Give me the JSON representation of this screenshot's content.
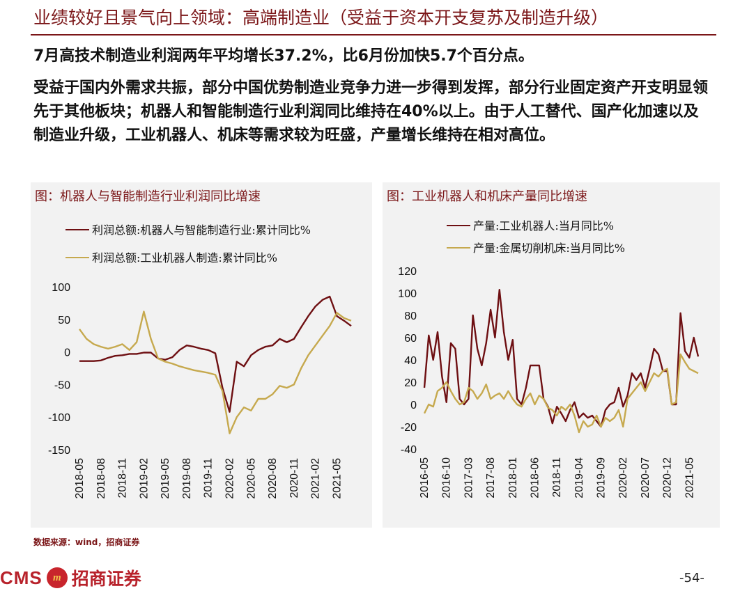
{
  "header": {
    "title": "业绩较好且景气向上领域：高端制造业（受益于资本开支复苏及制造升级）",
    "lead": "7月高技术制造业利润两年平均增长37.2%，比6月份加快5.7个百分点。",
    "paragraph": "受益于国内外需求共振，部分中国优势制造业竞争力进一步得到发挥，部分行业固定资产开支明显领先于其他板块；机器人和智能制造行业利润同比维持在40%以上。由于人工替代、国产化加速以及制造业升级，工业机器人、机床等需求较为旺盛，产量增长维持在相对高位。"
  },
  "colors": {
    "accent": "#7b1618",
    "series1": "#6e0f12",
    "series2": "#c6a94e"
  },
  "chart_data": [
    {
      "type": "line",
      "title": "图：机器人与智能制造行业利润同比增速",
      "xlabel": "",
      "ylabel": "",
      "ylim": [
        -150,
        100
      ],
      "yticks": [
        100,
        50,
        0,
        -50,
        -100,
        -150
      ],
      "x_start": "2018-05",
      "x_end": "2021-07",
      "x_ticks": [
        "2018-05",
        "2018-08",
        "2018-11",
        "2019-02",
        "2019-05",
        "2019-08",
        "2019-11",
        "2020-02",
        "2020-05",
        "2020-08",
        "2020-11",
        "2021-02",
        "2021-05"
      ],
      "grid": false,
      "legend": "top-left",
      "series": [
        {
          "name": "利润总额:机器人与智能制造行业:累计同比%",
          "color": "#6e0f12",
          "points": [
            [
              "2018-05",
              -14
            ],
            [
              "2018-07",
              -14
            ],
            [
              "2018-08",
              -13
            ],
            [
              "2018-09",
              -9
            ],
            [
              "2018-10",
              -6
            ],
            [
              "2018-11",
              -5
            ],
            [
              "2018-12",
              -3
            ],
            [
              "2019-01",
              -3
            ],
            [
              "2019-02",
              -1
            ],
            [
              "2019-03",
              -1
            ],
            [
              "2019-04",
              -10
            ],
            [
              "2019-05",
              -12
            ],
            [
              "2019-06",
              -8
            ],
            [
              "2019-07",
              3
            ],
            [
              "2019-08",
              10
            ],
            [
              "2019-09",
              8
            ],
            [
              "2019-10",
              5
            ],
            [
              "2019-11",
              3
            ],
            [
              "2019-12",
              -2
            ],
            [
              "2020-01",
              -55
            ],
            [
              "2020-02",
              -92
            ],
            [
              "2020-03",
              -15
            ],
            [
              "2020-04",
              -22
            ],
            [
              "2020-05",
              -5
            ],
            [
              "2020-06",
              3
            ],
            [
              "2020-07",
              8
            ],
            [
              "2020-08",
              10
            ],
            [
              "2020-09",
              20
            ],
            [
              "2020-10",
              15
            ],
            [
              "2020-11",
              20
            ],
            [
              "2020-12",
              38
            ],
            [
              "2021-01",
              55
            ],
            [
              "2021-02",
              70
            ],
            [
              "2021-03",
              80
            ],
            [
              "2021-04",
              85
            ],
            [
              "2021-05",
              55
            ],
            [
              "2021-06",
              48
            ],
            [
              "2021-07",
              40
            ]
          ]
        },
        {
          "name": "利润总额:工业机器人制造:累计同比%",
          "color": "#c6a94e",
          "points": [
            [
              "2018-05",
              35
            ],
            [
              "2018-06",
              20
            ],
            [
              "2018-07",
              12
            ],
            [
              "2018-08",
              8
            ],
            [
              "2018-09",
              5
            ],
            [
              "2018-10",
              8
            ],
            [
              "2018-11",
              12
            ],
            [
              "2018-12",
              3
            ],
            [
              "2019-01",
              15
            ],
            [
              "2019-02",
              62
            ],
            [
              "2019-03",
              20
            ],
            [
              "2019-04",
              -10
            ],
            [
              "2019-05",
              -15
            ],
            [
              "2019-06",
              -18
            ],
            [
              "2019-07",
              -22
            ],
            [
              "2019-08",
              -25
            ],
            [
              "2019-09",
              -28
            ],
            [
              "2019-10",
              -30
            ],
            [
              "2019-11",
              -32
            ],
            [
              "2019-12",
              -35
            ],
            [
              "2020-01",
              -60
            ],
            [
              "2020-02",
              -125
            ],
            [
              "2020-03",
              -100
            ],
            [
              "2020-04",
              -85
            ],
            [
              "2020-05",
              -90
            ],
            [
              "2020-06",
              -72
            ],
            [
              "2020-07",
              -72
            ],
            [
              "2020-08",
              -65
            ],
            [
              "2020-09",
              -52
            ],
            [
              "2020-10",
              -55
            ],
            [
              "2020-11",
              -50
            ],
            [
              "2020-12",
              -25
            ],
            [
              "2021-01",
              -5
            ],
            [
              "2021-02",
              10
            ],
            [
              "2021-03",
              25
            ],
            [
              "2021-04",
              40
            ],
            [
              "2021-05",
              60
            ],
            [
              "2021-06",
              52
            ],
            [
              "2021-07",
              48
            ]
          ]
        }
      ]
    },
    {
      "type": "line",
      "title": "图：工业机器人和机床产量同比增速",
      "xlabel": "",
      "ylabel": "",
      "ylim": [
        -40,
        120
      ],
      "yticks": [
        120,
        100,
        80,
        60,
        40,
        20,
        0,
        -20,
        -40
      ],
      "x_start": "2016-05",
      "x_end": "2021-07",
      "x_ticks": [
        "2016-05",
        "2016-10",
        "2017-03",
        "2017-08",
        "2018-01",
        "2018-06",
        "2018-11",
        "2019-04",
        "2019-09",
        "2020-02",
        "2020-07",
        "2020-12",
        "2021-05"
      ],
      "grid": false,
      "legend": "top-center",
      "series": [
        {
          "name": "产量:工业机器人:当月同比%",
          "color": "#6e0f12",
          "points": [
            [
              "2016-05",
              15
            ],
            [
              "2016-06",
              62
            ],
            [
              "2016-07",
              40
            ],
            [
              "2016-08",
              65
            ],
            [
              "2016-09",
              25
            ],
            [
              "2016-10",
              2
            ],
            [
              "2016-11",
              55
            ],
            [
              "2016-12",
              50
            ],
            [
              "2017-01",
              5
            ],
            [
              "2017-02",
              0
            ],
            [
              "2017-03",
              5
            ],
            [
              "2017-04",
              80
            ],
            [
              "2017-05",
              50
            ],
            [
              "2017-06",
              35
            ],
            [
              "2017-07",
              55
            ],
            [
              "2017-08",
              85
            ],
            [
              "2017-09",
              60
            ],
            [
              "2017-10",
              103
            ],
            [
              "2017-11",
              65
            ],
            [
              "2017-12",
              40
            ],
            [
              "2018-01",
              58
            ],
            [
              "2018-02",
              5
            ],
            [
              "2018-03",
              0
            ],
            [
              "2018-04",
              15
            ],
            [
              "2018-05",
              35
            ],
            [
              "2018-06",
              35
            ],
            [
              "2018-07",
              35
            ],
            [
              "2018-08",
              5
            ],
            [
              "2018-09",
              -2
            ],
            [
              "2018-10",
              -17
            ],
            [
              "2018-11",
              -2
            ],
            [
              "2018-12",
              -8
            ],
            [
              "2019-01",
              -15
            ],
            [
              "2019-02",
              -5
            ],
            [
              "2019-03",
              2
            ],
            [
              "2019-04",
              -12
            ],
            [
              "2019-05",
              -8
            ],
            [
              "2019-06",
              -12
            ],
            [
              "2019-07",
              -10
            ],
            [
              "2019-08",
              -15
            ],
            [
              "2019-09",
              -20
            ],
            [
              "2019-10",
              -5
            ],
            [
              "2019-11",
              0
            ],
            [
              "2019-12",
              2
            ],
            [
              "2020-01",
              15
            ],
            [
              "2020-02",
              -2
            ],
            [
              "2020-03",
              8
            ],
            [
              "2020-04",
              28
            ],
            [
              "2020-05",
              22
            ],
            [
              "2020-06",
              28
            ],
            [
              "2020-07",
              15
            ],
            [
              "2020-08",
              32
            ],
            [
              "2020-09",
              50
            ],
            [
              "2020-10",
              45
            ],
            [
              "2020-11",
              30
            ],
            [
              "2020-12",
              30
            ],
            [
              "2021-01",
              0
            ],
            [
              "2021-02",
              0
            ],
            [
              "2021-03",
              82
            ],
            [
              "2021-04",
              48
            ],
            [
              "2021-05",
              42
            ],
            [
              "2021-06",
              60
            ],
            [
              "2021-07",
              43
            ]
          ]
        },
        {
          "name": "产量:金属切削机床:当月同比%",
          "color": "#c6a94e",
          "points": [
            [
              "2016-05",
              -8
            ],
            [
              "2016-06",
              0
            ],
            [
              "2016-07",
              -2
            ],
            [
              "2016-08",
              12
            ],
            [
              "2016-09",
              15
            ],
            [
              "2016-10",
              20
            ],
            [
              "2016-11",
              12
            ],
            [
              "2016-12",
              5
            ],
            [
              "2017-01",
              0
            ],
            [
              "2017-02",
              2
            ],
            [
              "2017-03",
              15
            ],
            [
              "2017-04",
              12
            ],
            [
              "2017-05",
              5
            ],
            [
              "2017-06",
              10
            ],
            [
              "2017-07",
              18
            ],
            [
              "2017-08",
              5
            ],
            [
              "2017-09",
              8
            ],
            [
              "2017-10",
              10
            ],
            [
              "2017-11",
              5
            ],
            [
              "2017-12",
              12
            ],
            [
              "2018-01",
              5
            ],
            [
              "2018-02",
              0
            ],
            [
              "2018-03",
              -2
            ],
            [
              "2018-04",
              5
            ],
            [
              "2018-05",
              10
            ],
            [
              "2018-06",
              0
            ],
            [
              "2018-07",
              8
            ],
            [
              "2018-08",
              5
            ],
            [
              "2018-09",
              -3
            ],
            [
              "2018-10",
              -5
            ],
            [
              "2018-11",
              -10
            ],
            [
              "2018-12",
              -2
            ],
            [
              "2019-01",
              -5
            ],
            [
              "2019-02",
              0
            ],
            [
              "2019-03",
              -10
            ],
            [
              "2019-04",
              -25
            ],
            [
              "2019-05",
              -15
            ],
            [
              "2019-06",
              -20
            ],
            [
              "2019-07",
              -18
            ],
            [
              "2019-08",
              -10
            ],
            [
              "2019-09",
              -20
            ],
            [
              "2019-10",
              -12
            ],
            [
              "2019-11",
              -15
            ],
            [
              "2019-12",
              -12
            ],
            [
              "2020-01",
              -5
            ],
            [
              "2020-02",
              -20
            ],
            [
              "2020-03",
              5
            ],
            [
              "2020-04",
              10
            ],
            [
              "2020-05",
              15
            ],
            [
              "2020-06",
              20
            ],
            [
              "2020-07",
              12
            ],
            [
              "2020-08",
              20
            ],
            [
              "2020-09",
              28
            ],
            [
              "2020-10",
              25
            ],
            [
              "2020-11",
              30
            ],
            [
              "2020-12",
              32
            ],
            [
              "2021-01",
              0
            ],
            [
              "2021-02",
              2
            ],
            [
              "2021-03",
              45
            ],
            [
              "2021-04",
              38
            ],
            [
              "2021-05",
              32
            ],
            [
              "2021-06",
              30
            ],
            [
              "2021-07",
              28
            ]
          ]
        }
      ]
    }
  ],
  "footer": {
    "source": "数据来源：wind，招商证券",
    "logo_latin": "CMS",
    "logo_mark": "m",
    "logo_cn": "招商证券",
    "page_number": "-54-"
  }
}
